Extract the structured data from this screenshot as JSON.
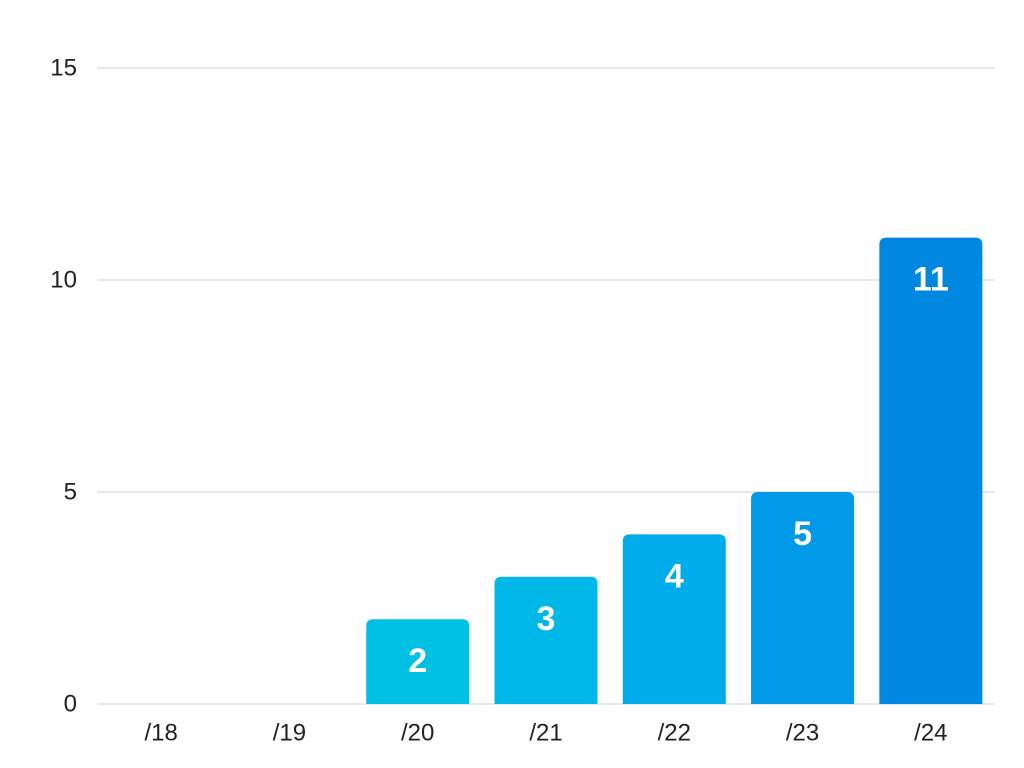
{
  "chart_data": {
    "type": "bar",
    "title": "",
    "xlabel": "",
    "ylabel": "",
    "categories": [
      "/18",
      "/19",
      "/20",
      "/21",
      "/22",
      "/23",
      "/24"
    ],
    "values": [
      0,
      0,
      2,
      3,
      4,
      5,
      11
    ],
    "data_labels": [
      "",
      "",
      "2",
      "3",
      "4",
      "5",
      "11"
    ],
    "ylim": [
      0,
      15
    ],
    "yticks": [
      0,
      5,
      10,
      15
    ],
    "ytick_labels": [
      "0",
      "5",
      "10",
      "15"
    ],
    "grid": true,
    "legend": "none",
    "bar_colors": [
      "#00c8e0",
      "#00c4e4",
      "#00c0e4",
      "#00b8e8",
      "#00acea",
      "#009ae8",
      "#0088e0"
    ],
    "label_color": "#ffffff",
    "text_color": "#222222",
    "grid_color": "#cfcfcf"
  }
}
